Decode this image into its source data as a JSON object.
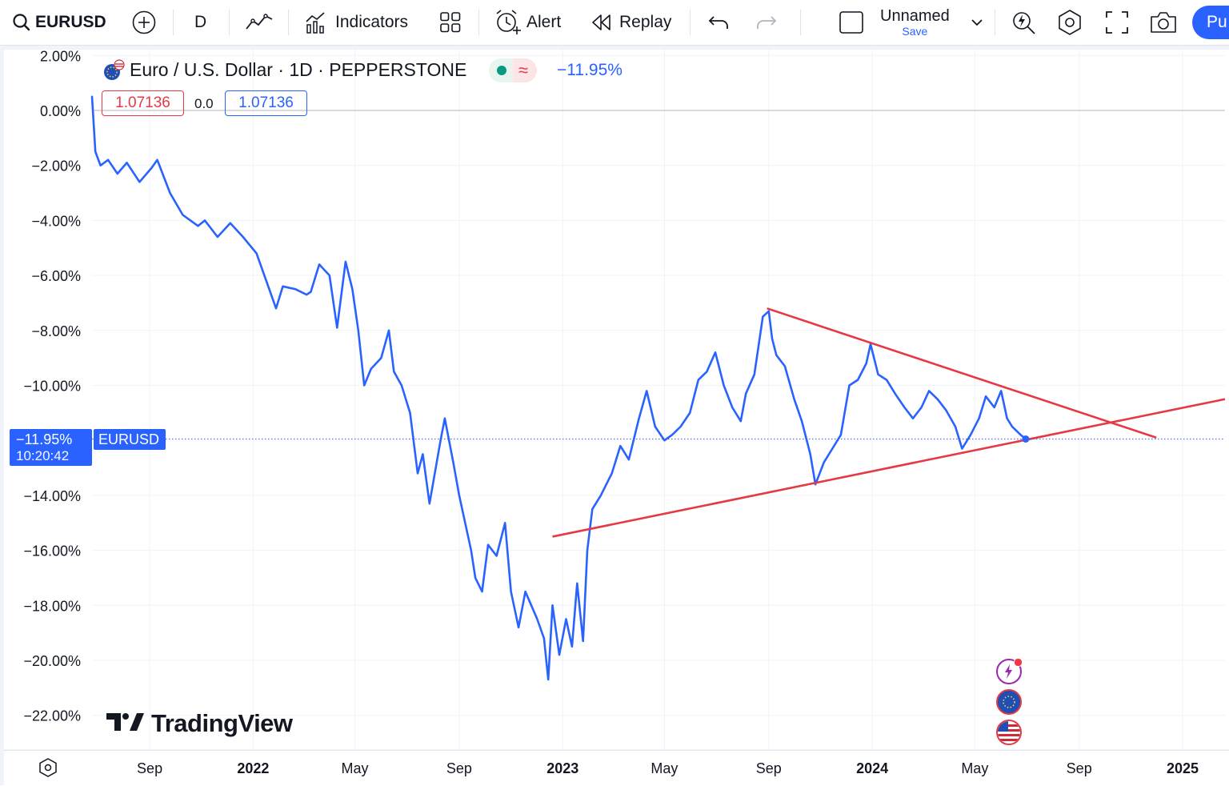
{
  "toolbar": {
    "symbol": "EURUSD",
    "interval": "D",
    "indicators_label": "Indicators",
    "alert_label": "Alert",
    "replay_label": "Replay",
    "layout_name": "Unnamed",
    "save_label": "Save",
    "publish_label": "Pu"
  },
  "legend": {
    "title": "Euro / U.S. Dollar · 1D · PEPPERSTONE",
    "change": "−11.95%",
    "bid": "1.07136",
    "spread": "0.0",
    "ask": "1.07136"
  },
  "watermark": "TradingView",
  "price_badge": {
    "value": "−11.95%",
    "time": "10:20:42",
    "symbol": "EURUSD"
  },
  "colors": {
    "line": "#2962ff",
    "trendline": "#e53945",
    "accent": "#2962ff"
  },
  "chart_data": {
    "type": "line",
    "title": "Euro / U.S. Dollar · 1D · PEPPERSTONE",
    "ylabel": "",
    "xlabel": "",
    "y_unit": "percent change",
    "ylim": [
      -23.0,
      2.0
    ],
    "y_ticks": [
      "2.00%",
      "0.00%",
      "−2.00%",
      "−4.00%",
      "−6.00%",
      "−8.00%",
      "−10.00%",
      "−14.00%",
      "−16.00%",
      "−18.00%",
      "−20.00%",
      "−22.00%"
    ],
    "y_tick_values": [
      2,
      0,
      -2,
      -4,
      -6,
      -8,
      -10,
      -14,
      -16,
      -18,
      -20,
      -22
    ],
    "x_range": [
      "2021-06-25",
      "2025-02-20"
    ],
    "x_ticks": [
      {
        "label": "Sep",
        "date": "2021-09-01",
        "bold": false
      },
      {
        "label": "2022",
        "date": "2022-01-01",
        "bold": true
      },
      {
        "label": "May",
        "date": "2022-05-01",
        "bold": false
      },
      {
        "label": "Sep",
        "date": "2022-09-01",
        "bold": false
      },
      {
        "label": "2023",
        "date": "2023-01-01",
        "bold": true
      },
      {
        "label": "May",
        "date": "2023-05-01",
        "bold": false
      },
      {
        "label": "Sep",
        "date": "2023-09-01",
        "bold": false
      },
      {
        "label": "2024",
        "date": "2024-01-01",
        "bold": true
      },
      {
        "label": "May",
        "date": "2024-05-01",
        "bold": false
      },
      {
        "label": "Sep",
        "date": "2024-09-01",
        "bold": false
      },
      {
        "label": "2025",
        "date": "2025-01-01",
        "bold": true
      }
    ],
    "grid": true,
    "series": [
      {
        "symbol": "EURUSD",
        "points": [
          [
            "2021-06-25",
            0.5
          ],
          [
            "2021-06-29",
            -1.5
          ],
          [
            "2021-07-05",
            -2.0
          ],
          [
            "2021-07-14",
            -1.8
          ],
          [
            "2021-07-25",
            -2.3
          ],
          [
            "2021-08-05",
            -1.9
          ],
          [
            "2021-08-20",
            -2.6
          ],
          [
            "2021-09-03",
            -2.1
          ],
          [
            "2021-09-10",
            -1.8
          ],
          [
            "2021-09-25",
            -3.0
          ],
          [
            "2021-10-10",
            -3.8
          ],
          [
            "2021-10-28",
            -4.2
          ],
          [
            "2021-11-05",
            -4.0
          ],
          [
            "2021-11-20",
            -4.6
          ],
          [
            "2021-12-05",
            -4.1
          ],
          [
            "2021-12-20",
            -4.6
          ],
          [
            "2022-01-05",
            -5.2
          ],
          [
            "2022-01-20",
            -6.5
          ],
          [
            "2022-01-28",
            -7.2
          ],
          [
            "2022-02-05",
            -6.4
          ],
          [
            "2022-02-20",
            -6.5
          ],
          [
            "2022-03-05",
            -6.7
          ],
          [
            "2022-03-10",
            -6.6
          ],
          [
            "2022-03-20",
            -5.6
          ],
          [
            "2022-04-01",
            -6.0
          ],
          [
            "2022-04-10",
            -7.9
          ],
          [
            "2022-04-20",
            -5.5
          ],
          [
            "2022-04-28",
            -6.5
          ],
          [
            "2022-05-05",
            -8.0
          ],
          [
            "2022-05-12",
            -10.0
          ],
          [
            "2022-05-20",
            -9.4
          ],
          [
            "2022-06-01",
            -9.0
          ],
          [
            "2022-06-10",
            -8.0
          ],
          [
            "2022-06-16",
            -9.5
          ],
          [
            "2022-06-25",
            -10.0
          ],
          [
            "2022-07-05",
            -11.0
          ],
          [
            "2022-07-14",
            -13.2
          ],
          [
            "2022-07-20",
            -12.5
          ],
          [
            "2022-07-28",
            -14.3
          ],
          [
            "2022-08-10",
            -12.0
          ],
          [
            "2022-08-15",
            -11.2
          ],
          [
            "2022-08-25",
            -12.8
          ],
          [
            "2022-09-01",
            -14.0
          ],
          [
            "2022-09-15",
            -16.0
          ],
          [
            "2022-09-20",
            -17.0
          ],
          [
            "2022-09-28",
            -17.5
          ],
          [
            "2022-10-05",
            -15.8
          ],
          [
            "2022-10-15",
            -16.2
          ],
          [
            "2022-10-25",
            -15.0
          ],
          [
            "2022-11-01",
            -17.5
          ],
          [
            "2022-11-10",
            -18.8
          ],
          [
            "2022-11-18",
            -17.5
          ],
          [
            "2022-11-25",
            -18.0
          ],
          [
            "2022-12-02",
            -18.5
          ],
          [
            "2022-12-10",
            -19.2
          ],
          [
            "2022-12-15",
            -20.7
          ],
          [
            "2022-12-20",
            -18.0
          ],
          [
            "2022-12-28",
            -19.8
          ],
          [
            "2023-01-05",
            -18.5
          ],
          [
            "2023-01-12",
            -19.5
          ],
          [
            "2023-01-18",
            -17.2
          ],
          [
            "2023-01-25",
            -19.3
          ],
          [
            "2023-01-30",
            -16.0
          ],
          [
            "2023-02-05",
            -14.5
          ],
          [
            "2023-02-15",
            -14.0
          ],
          [
            "2023-02-28",
            -13.2
          ],
          [
            "2023-03-10",
            -12.2
          ],
          [
            "2023-03-20",
            -12.7
          ],
          [
            "2023-04-01",
            -11.2
          ],
          [
            "2023-04-10",
            -10.2
          ],
          [
            "2023-04-20",
            -11.5
          ],
          [
            "2023-05-01",
            -12.0
          ],
          [
            "2023-05-10",
            -11.8
          ],
          [
            "2023-05-20",
            -11.5
          ],
          [
            "2023-05-31",
            -11.0
          ],
          [
            "2023-06-10",
            -9.8
          ],
          [
            "2023-06-20",
            -9.5
          ],
          [
            "2023-06-30",
            -8.8
          ],
          [
            "2023-07-10",
            -10.0
          ],
          [
            "2023-07-20",
            -10.8
          ],
          [
            "2023-07-30",
            -11.3
          ],
          [
            "2023-08-05",
            -10.3
          ],
          [
            "2023-08-15",
            -9.6
          ],
          [
            "2023-08-25",
            -7.5
          ],
          [
            "2023-09-01",
            -7.3
          ],
          [
            "2023-09-05",
            -8.3
          ],
          [
            "2023-09-10",
            -8.9
          ],
          [
            "2023-09-20",
            -9.3
          ],
          [
            "2023-10-01",
            -10.5
          ],
          [
            "2023-10-10",
            -11.3
          ],
          [
            "2023-10-20",
            -12.5
          ],
          [
            "2023-10-26",
            -13.6
          ],
          [
            "2023-11-05",
            -12.8
          ],
          [
            "2023-11-15",
            -12.3
          ],
          [
            "2023-11-25",
            -11.8
          ],
          [
            "2023-12-05",
            -10.0
          ],
          [
            "2023-12-15",
            -9.8
          ],
          [
            "2023-12-25",
            -9.2
          ],
          [
            "2023-12-30",
            -8.5
          ],
          [
            "2024-01-08",
            -9.6
          ],
          [
            "2024-01-18",
            -9.8
          ],
          [
            "2024-01-28",
            -10.3
          ],
          [
            "2024-02-08",
            -10.8
          ],
          [
            "2024-02-18",
            -11.2
          ],
          [
            "2024-02-28",
            -10.8
          ],
          [
            "2024-03-08",
            -10.2
          ],
          [
            "2024-03-18",
            -10.5
          ],
          [
            "2024-03-28",
            -10.9
          ],
          [
            "2024-04-08",
            -11.5
          ],
          [
            "2024-04-16",
            -12.3
          ],
          [
            "2024-04-26",
            -11.8
          ],
          [
            "2024-05-06",
            -11.2
          ],
          [
            "2024-05-14",
            -10.4
          ],
          [
            "2024-05-24",
            -10.8
          ],
          [
            "2024-06-01",
            -10.2
          ],
          [
            "2024-06-08",
            -11.2
          ],
          [
            "2024-06-14",
            -11.5
          ],
          [
            "2024-06-24",
            -11.8
          ],
          [
            "2024-06-30",
            -11.95
          ]
        ]
      }
    ],
    "trendlines": [
      {
        "name": "resistance",
        "from": [
          "2023-08-30",
          -7.2
        ],
        "to": [
          "2024-12-01",
          -11.9
        ]
      },
      {
        "name": "support",
        "from": [
          "2022-12-20",
          -15.5
        ],
        "to": [
          "2025-02-20",
          -10.5
        ]
      }
    ],
    "last_value": -11.95
  }
}
